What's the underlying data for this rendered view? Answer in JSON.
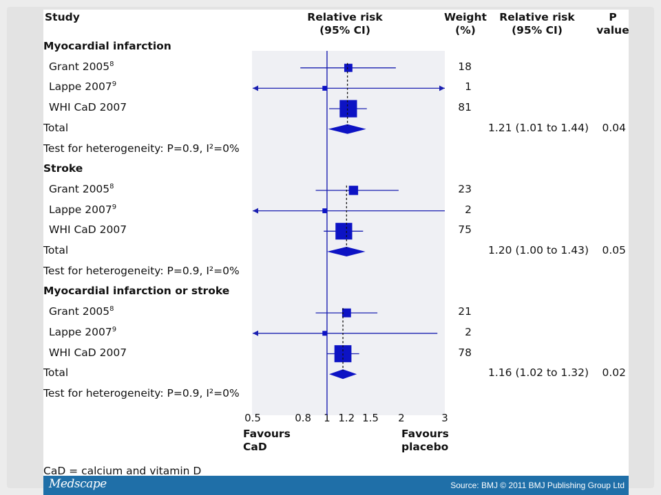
{
  "headers": {
    "study": "Study",
    "rr_plot_l1": "Relative risk",
    "rr_plot_l2": "(95% CI)",
    "weight_l1": "Weight",
    "weight_l2": "(%)",
    "rr_l1": "Relative risk",
    "rr_l2": "(95% CI)",
    "p_l1": "P",
    "p_l2": "value"
  },
  "footnote": "CaD = calcium and vitamin D",
  "footer": {
    "brand": "Medscape",
    "source": "Source: BMJ © 2011 BMJ Publishing Group Ltd"
  },
  "axis": {
    "favours_left_l1": "Favours",
    "favours_left_l2": "CaD",
    "favours_right_l1": "Favours",
    "favours_right_l2": "placebo"
  },
  "colors": {
    "marker": "#0d13c4",
    "ci_line": "#1a1fb0",
    "plot_bg": "#eff0f4",
    "footer_bg": "#1f6fa8"
  },
  "chart_data": {
    "type": "forest",
    "scale": "log",
    "xlim": [
      0.5,
      3
    ],
    "xticks": [
      0.5,
      0.8,
      1,
      1.2,
      1.5,
      2,
      3
    ],
    "xtick_labels": [
      "0.5",
      "0.8",
      "1",
      "1.2",
      "1.5",
      "2",
      "3"
    ],
    "reference_line": 1,
    "groups": [
      {
        "name": "Myocardial infarction",
        "studies": [
          {
            "label": "Grant 2005",
            "ref": "8",
            "rr": 1.22,
            "lo": 0.78,
            "hi": 1.9,
            "weight": "18",
            "arrow_left": false,
            "arrow_right": false
          },
          {
            "label": "Lappe 2007",
            "ref": "9",
            "rr": 0.98,
            "lo": 0.5,
            "hi": 3.0,
            "weight": "1",
            "arrow_left": true,
            "arrow_right": true
          },
          {
            "label": "WHI CaD 2007",
            "ref": "",
            "rr": 1.22,
            "lo": 1.02,
            "hi": 1.45,
            "weight": "81",
            "arrow_left": false,
            "arrow_right": false
          }
        ],
        "total": {
          "label": "Total",
          "rr": 1.21,
          "lo": 1.01,
          "hi": 1.44,
          "ci_text": "1.21 (1.01 to 1.44)",
          "p": "0.04"
        },
        "heterogeneity": "Test for heterogeneity: P=0.9, I²=0%"
      },
      {
        "name": "Stroke",
        "studies": [
          {
            "label": "Grant 2005",
            "ref": "8",
            "rr": 1.28,
            "lo": 0.9,
            "hi": 1.95,
            "weight": "23",
            "arrow_left": false,
            "arrow_right": false
          },
          {
            "label": "Lappe 2007",
            "ref": "9",
            "rr": 0.98,
            "lo": 0.5,
            "hi": 3.0,
            "weight": "2",
            "arrow_left": true,
            "arrow_right": false
          },
          {
            "label": "WHI CaD 2007",
            "ref": "",
            "rr": 1.17,
            "lo": 0.97,
            "hi": 1.4,
            "weight": "75",
            "arrow_left": false,
            "arrow_right": false
          }
        ],
        "total": {
          "label": "Total",
          "rr": 1.2,
          "lo": 1.0,
          "hi": 1.43,
          "ci_text": "1.20 (1.00 to 1.43)",
          "p": "0.05"
        },
        "heterogeneity": "Test for heterogeneity: P=0.9, I²=0%"
      },
      {
        "name": "Myocardial infarction or stroke",
        "studies": [
          {
            "label": "Grant 2005",
            "ref": "8",
            "rr": 1.2,
            "lo": 0.9,
            "hi": 1.6,
            "weight": "21",
            "arrow_left": false,
            "arrow_right": false
          },
          {
            "label": "Lappe 2007",
            "ref": "9",
            "rr": 0.98,
            "lo": 0.5,
            "hi": 2.8,
            "weight": "2",
            "arrow_left": true,
            "arrow_right": false
          },
          {
            "label": "WHI CaD 2007",
            "ref": "",
            "rr": 1.16,
            "lo": 1.0,
            "hi": 1.35,
            "weight": "78",
            "arrow_left": false,
            "arrow_right": false
          }
        ],
        "total": {
          "label": "Total",
          "rr": 1.16,
          "lo": 1.02,
          "hi": 1.32,
          "ci_text": "1.16 (1.02 to 1.32)",
          "p": "0.02"
        },
        "heterogeneity": "Test for heterogeneity: P=0.9, I²=0%"
      }
    ]
  }
}
